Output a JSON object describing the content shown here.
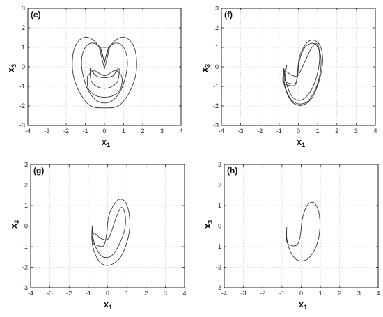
{
  "chart_data": [
    {
      "type": "line",
      "panel_label": "(e)",
      "xlabel": "x",
      "xlabel_sub": "1",
      "ylabel": "x",
      "ylabel_sub": "3",
      "xlim": [
        -4,
        4
      ],
      "ylim": [
        -3,
        3
      ],
      "xticks": [
        "-4",
        "-3",
        "-2",
        "-1",
        "0",
        "1",
        "2",
        "3",
        "4"
      ],
      "yticks": [
        "-3",
        "-2",
        "-1",
        "0",
        "1",
        "2",
        "3"
      ],
      "grid": true,
      "series": [
        {
          "x": [
            0.0,
            0.3,
            0.7,
            1.1,
            1.45,
            1.65,
            1.65,
            1.4,
            1.0,
            0.6,
            0.0,
            -0.6,
            -1.0,
            -1.4,
            -1.65,
            -1.65,
            -1.45,
            -1.1,
            -0.7,
            -0.3,
            0.0
          ],
          "y": [
            0.3,
            1.05,
            1.45,
            1.5,
            1.2,
            0.6,
            -0.3,
            -1.1,
            -1.75,
            -2.05,
            -2.1,
            -2.05,
            -1.75,
            -1.1,
            -0.3,
            0.6,
            1.2,
            1.5,
            1.45,
            1.05,
            0.3
          ]
        },
        {
          "x": [
            0.0,
            0.2,
            0.5,
            0.85,
            1.1,
            1.2,
            1.1,
            0.85,
            0.45,
            0.0,
            -0.45,
            -0.85,
            -1.1,
            -1.2,
            -1.1,
            -0.85,
            -0.5,
            -0.2,
            0.0
          ],
          "y": [
            0.2,
            0.95,
            1.2,
            1.15,
            0.8,
            0.2,
            -0.5,
            -1.2,
            -1.7,
            -1.85,
            -1.7,
            -1.2,
            -0.5,
            0.2,
            0.8,
            1.15,
            1.2,
            0.95,
            0.2
          ]
        },
        {
          "x": [
            0.0,
            0.15,
            0.25,
            0.2,
            0.0,
            -0.2,
            -0.25,
            -0.15,
            0.0
          ],
          "y": [
            -0.1,
            0.5,
            0.9,
            1.0,
            1.0,
            1.0,
            0.9,
            0.5,
            -0.1
          ]
        },
        {
          "x": [
            -0.9,
            -0.55,
            0.0,
            0.55,
            0.9,
            0.85,
            0.5,
            0.0,
            -0.5,
            -0.85,
            -0.9
          ],
          "y": [
            -0.5,
            -0.2,
            -0.45,
            -0.2,
            -0.5,
            -1.1,
            -1.45,
            -1.55,
            -1.45,
            -1.1,
            -0.5
          ]
        },
        {
          "x": [
            -0.75,
            -0.45,
            0.0,
            0.45,
            0.75,
            0.7,
            0.4,
            0.0,
            -0.4,
            -0.7,
            -0.75
          ],
          "y": [
            -0.05,
            -0.45,
            -0.55,
            -0.45,
            -0.05,
            -0.7,
            -1.0,
            -1.1,
            -1.0,
            -0.7,
            -0.05
          ]
        }
      ]
    },
    {
      "type": "line",
      "panel_label": "(f)",
      "xlabel": "x",
      "xlabel_sub": "1",
      "ylabel": "x",
      "ylabel_sub": "3",
      "xlim": [
        -4,
        4
      ],
      "ylim": [
        -3,
        3
      ],
      "xticks": [
        "-4",
        "-3",
        "-2",
        "-1",
        "0",
        "1",
        "2",
        "3",
        "4"
      ],
      "yticks": [
        "-3",
        "-2",
        "-1",
        "0",
        "1",
        "2",
        "3"
      ],
      "grid": true,
      "series": [
        {
          "x": [
            -0.75,
            -0.8,
            -0.5,
            -0.15,
            -0.05,
            0.05,
            0.3,
            0.6,
            0.95,
            1.2,
            1.25,
            1.05,
            0.7,
            0.25,
            -0.2,
            -0.5,
            -0.7,
            -0.8,
            -0.65,
            -0.3,
            0.0,
            0.35,
            0.7,
            1.0,
            1.1,
            0.95,
            0.6,
            0.15,
            -0.25,
            -0.5,
            -0.7,
            -0.75
          ],
          "y": [
            -0.05,
            -0.75,
            -0.95,
            -0.9,
            -0.3,
            0.5,
            1.05,
            1.35,
            1.3,
            0.9,
            0.1,
            -0.8,
            -1.6,
            -1.95,
            -1.9,
            -1.55,
            -1.05,
            -0.5,
            -0.25,
            -0.45,
            -0.4,
            0.3,
            1.0,
            1.15,
            0.4,
            -0.5,
            -1.3,
            -1.7,
            -1.6,
            -1.2,
            -0.55,
            -0.05
          ]
        },
        {
          "x": [
            -0.6,
            -0.7,
            -0.45,
            -0.1,
            0.05,
            0.3,
            0.65,
            0.95,
            1.15,
            1.15,
            0.9,
            0.5,
            0.05,
            -0.35,
            -0.65,
            -0.75,
            -0.6
          ],
          "y": [
            0.1,
            -0.65,
            -0.85,
            -0.75,
            0.3,
            0.95,
            1.2,
            1.1,
            0.6,
            -0.2,
            -1.1,
            -1.75,
            -1.9,
            -1.7,
            -1.15,
            -0.45,
            0.1
          ]
        }
      ]
    },
    {
      "type": "line",
      "panel_label": "(g)",
      "xlabel": "x",
      "xlabel_sub": "1",
      "ylabel": "x",
      "ylabel_sub": "3",
      "xlim": [
        -4,
        4
      ],
      "ylim": [
        -3,
        3
      ],
      "xticks": [
        "-4",
        "-3",
        "-2",
        "-1",
        "0",
        "1",
        "2",
        "3",
        "4"
      ],
      "yticks": [
        "-3",
        "-2",
        "-1",
        "0",
        "1",
        "2",
        "3"
      ],
      "grid": true,
      "series": [
        {
          "x": [
            -0.8,
            -0.8,
            -0.5,
            -0.2,
            -0.05,
            0.05,
            0.3,
            0.6,
            0.9,
            1.1,
            1.15,
            0.95,
            0.6,
            0.1,
            -0.35,
            -0.65,
            -0.8,
            -0.7,
            -0.35,
            0.05,
            0.4,
            0.7,
            0.9,
            0.9,
            0.6,
            0.2,
            -0.25,
            -0.55,
            -0.75,
            -0.8
          ],
          "y": [
            0.0,
            -0.75,
            -0.95,
            -0.95,
            -0.4,
            0.45,
            1.0,
            1.3,
            1.2,
            0.7,
            -0.1,
            -0.95,
            -1.6,
            -1.9,
            -1.8,
            -1.35,
            -0.75,
            -0.35,
            -0.6,
            -0.6,
            0.3,
            0.9,
            0.6,
            -0.1,
            -0.9,
            -1.45,
            -1.5,
            -1.15,
            -0.6,
            0.0
          ]
        }
      ]
    },
    {
      "type": "line",
      "panel_label": "(h)",
      "xlabel": "x",
      "xlabel_sub": "1",
      "ylabel": "x",
      "ylabel_sub": "3",
      "xlim": [
        -4,
        4
      ],
      "ylim": [
        -3,
        3
      ],
      "xticks": [
        "-4",
        "-3",
        "-2",
        "-1",
        "0",
        "1",
        "2",
        "3",
        "4"
      ],
      "yticks": [
        "-3",
        "-2",
        "-1",
        "0",
        "1",
        "2",
        "3"
      ],
      "grid": true,
      "series": [
        {
          "x": [
            -0.75,
            -0.75,
            -0.5,
            -0.2,
            -0.05,
            0.05,
            0.25,
            0.5,
            0.75,
            0.95,
            0.95,
            0.75,
            0.4,
            0.0,
            -0.35,
            -0.6,
            -0.75,
            -0.75
          ],
          "y": [
            -0.05,
            -0.75,
            -0.95,
            -0.9,
            -0.5,
            0.3,
            0.9,
            1.15,
            1.05,
            0.5,
            -0.35,
            -1.05,
            -1.55,
            -1.7,
            -1.55,
            -1.15,
            -0.6,
            -0.05
          ]
        }
      ]
    }
  ]
}
